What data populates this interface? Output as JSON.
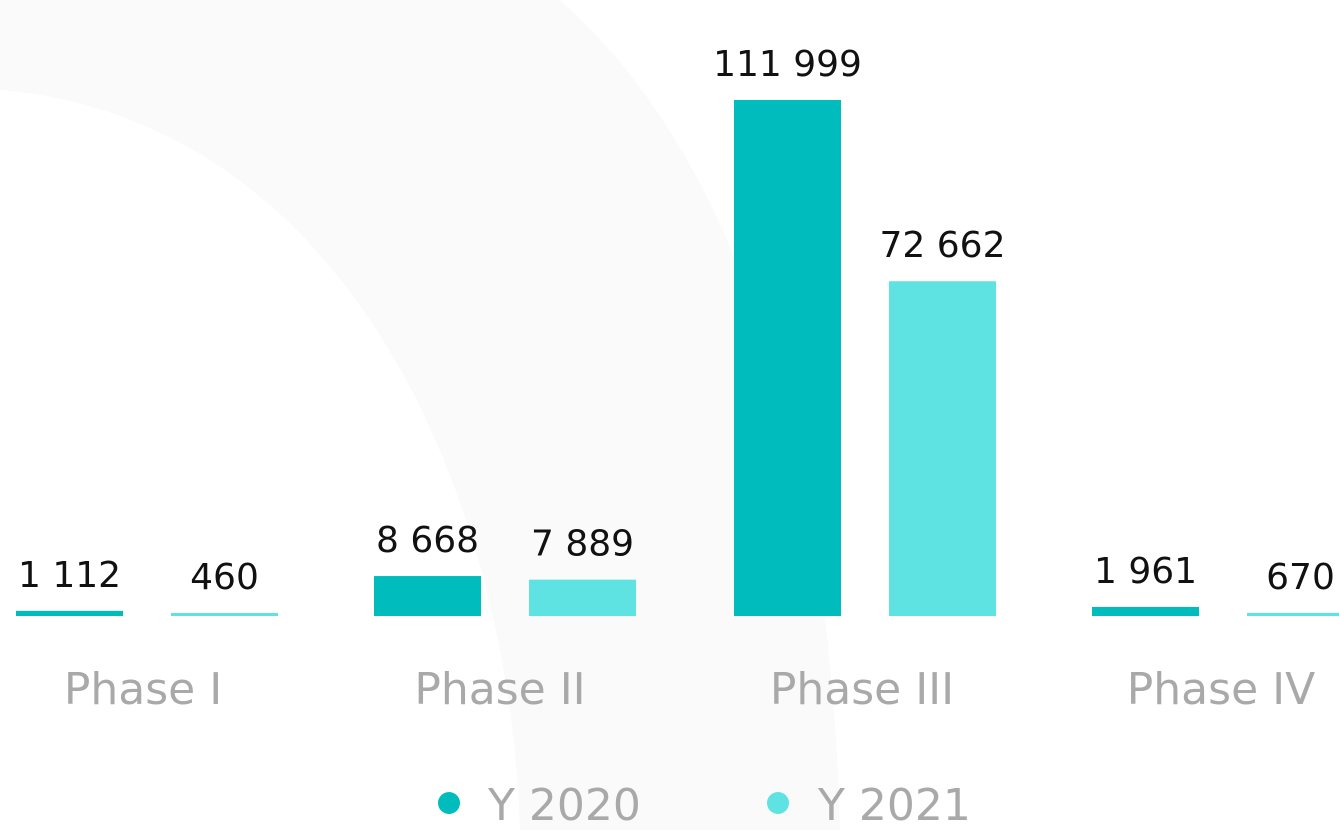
{
  "colors": {
    "background": "#ffffff",
    "y2020": "#00bcbc",
    "y2021": "#5ee2e2",
    "label_text": "#111111",
    "category_text": "#a9a9a9"
  },
  "chart_data": {
    "type": "bar",
    "title": "",
    "xlabel": "",
    "ylabel": "",
    "categories": [
      "Phase I",
      "Phase II",
      "Phase III",
      "Phase IV"
    ],
    "series": [
      {
        "name": "Y 2020",
        "values": [
          1112,
          8668,
          111999,
          1961
        ],
        "labels": [
          "1 112",
          "8 668",
          "111 999",
          "1 961"
        ],
        "color": "#00bcbc"
      },
      {
        "name": "Y 2021",
        "values": [
          460,
          7889,
          72662,
          670
        ],
        "labels": [
          "460",
          "7 889",
          "72 662",
          "670"
        ],
        "color": "#5ee2e2"
      }
    ],
    "ylim": [
      0,
      111999
    ],
    "grid": false,
    "axes_visible": false,
    "legend": "bottom-center"
  }
}
